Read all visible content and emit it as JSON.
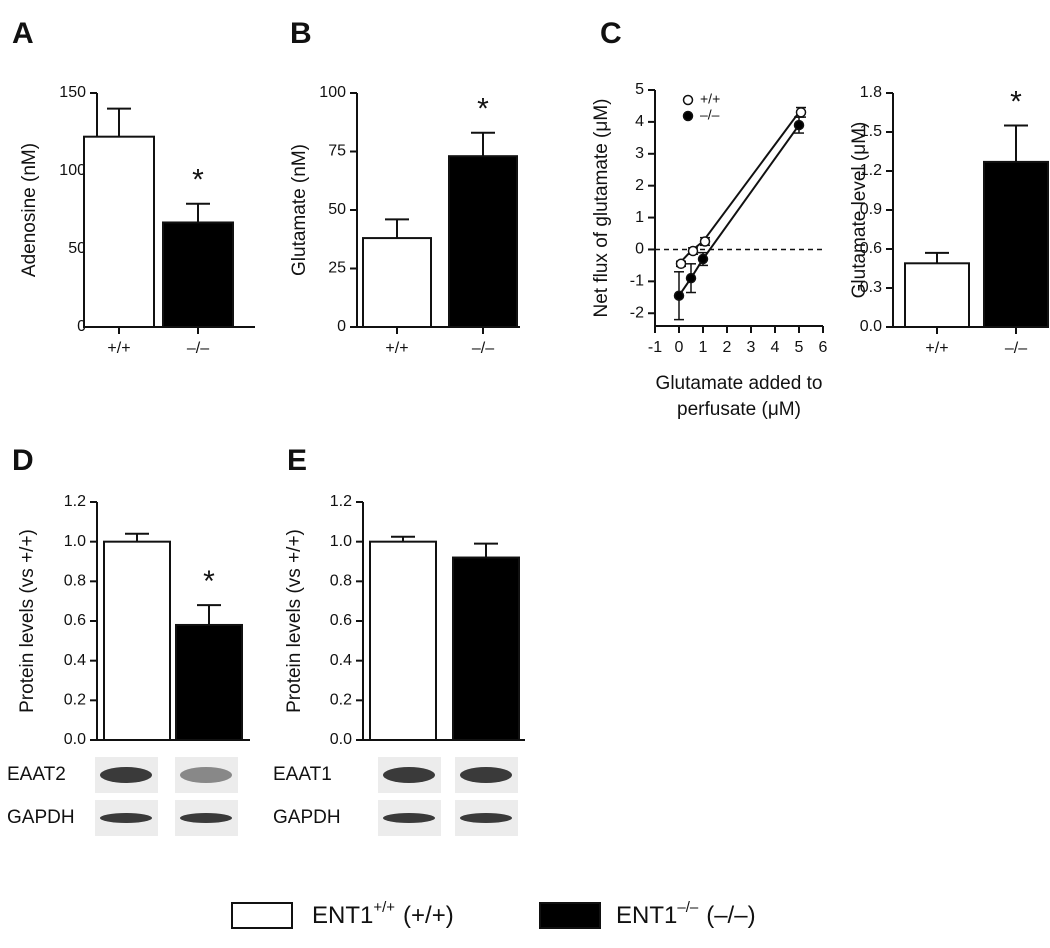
{
  "charts": [
    {
      "type": "bar",
      "label": "A",
      "ylabel": "Adenosine (nM)",
      "categories": [
        "+/+",
        "–/–"
      ],
      "series": [
        {
          "color": "#ffffff",
          "values": [
            122,
            67
          ],
          "errors": [
            18,
            12
          ]
        }
      ],
      "ylim": [
        0,
        150
      ],
      "yticks": [
        0,
        50,
        100,
        150
      ],
      "annotation": "*"
    },
    {
      "type": "bar",
      "label": "B",
      "ylabel": "Glutamate (nM)",
      "categories": [
        "+/+",
        "–/–"
      ],
      "series": [
        {
          "color": "#ffffff",
          "values": [
            38,
            73
          ],
          "errors": [
            8,
            10
          ]
        }
      ],
      "ylim": [
        0,
        100
      ],
      "yticks": [
        0,
        25,
        50,
        75,
        100
      ],
      "annotation": "*"
    },
    {
      "type": "line",
      "label": "C",
      "ylabel": "Net flux of glutamate (μM)",
      "xlabel": [
        "Glutamate added to",
        "perfusate (μM)"
      ],
      "x": [
        0,
        0.5,
        1,
        5
      ],
      "series": [
        {
          "name": "+/+",
          "color": "#ffffff",
          "values": [
            -0.45,
            -0.05,
            0.25,
            4.3
          ],
          "errors": [
            0.08,
            0.1,
            0.12,
            0.15
          ]
        },
        {
          "name": "–/–",
          "color": "#000000",
          "values": [
            -1.45,
            -0.9,
            -0.3,
            3.9
          ],
          "errors": [
            0.75,
            0.45,
            0.2,
            0.25
          ]
        }
      ],
      "xlim": [
        -1,
        6
      ],
      "xticks": [
        -1,
        0,
        1,
        2,
        3,
        4,
        5,
        6
      ],
      "ylim": [
        -2.4,
        5
      ],
      "yticks": [
        -2,
        -1,
        0,
        1,
        2,
        3,
        4,
        5
      ],
      "hline": 0
    },
    {
      "type": "bar",
      "ylabel": "Glutamate level (μM)",
      "categories": [
        "+/+",
        "–/–"
      ],
      "series": [
        {
          "color": "#ffffff",
          "values": [
            0.49,
            1.27
          ],
          "errors": [
            0.08,
            0.28
          ]
        }
      ],
      "ylim": [
        0,
        1.8
      ],
      "yticks": [
        {
          "value": 0,
          "label": "0.0"
        },
        0.3,
        0.6,
        0.9,
        1.2,
        1.5,
        1.8
      ],
      "annotation": "*"
    },
    {
      "type": "bar",
      "label": "D",
      "ylabel": "Protein levels (vs +/+)",
      "categories": [
        null,
        null
      ],
      "series": [
        {
          "color": "#ffffff",
          "values": [
            1.0,
            0.58
          ],
          "errors": [
            0.04,
            0.1
          ]
        }
      ],
      "ylim": [
        0,
        1.2
      ],
      "yticks": [
        {
          "value": 0,
          "label": "0.0"
        },
        0.2,
        0.4,
        0.6,
        0.8,
        {
          "value": 1,
          "label": "1.0"
        },
        1.2
      ],
      "annotation": "*",
      "blots": [
        "EAAT2",
        "GAPDH"
      ]
    },
    {
      "type": "bar",
      "label": "E",
      "ylabel": "Protein levels (vs +/+)",
      "categories": [
        null,
        null
      ],
      "series": [
        {
          "color": "#ffffff",
          "values": [
            1.0,
            0.92
          ],
          "errors": [
            0.025,
            0.07
          ]
        }
      ],
      "ylim": [
        0,
        1.2
      ],
      "yticks": [
        {
          "value": 0,
          "label": "0.0"
        },
        0.2,
        0.4,
        0.6,
        0.8,
        {
          "value": 1,
          "label": "1.0"
        },
        1.2
      ],
      "blots": [
        "EAAT1",
        "GAPDH"
      ]
    }
  ],
  "legend": [
    {
      "base": "ENT1",
      "sup": "+/+",
      "suffix": "(+/+)",
      "color": "#ffffff"
    },
    {
      "base": "ENT1",
      "sup": "–/–",
      "suffix": "(–/–)",
      "color": "#000000"
    }
  ]
}
